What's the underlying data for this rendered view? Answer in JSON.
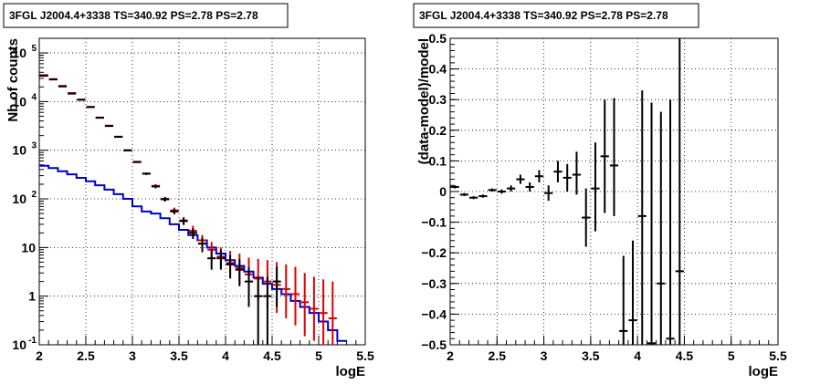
{
  "chart_data": [
    {
      "type": "line",
      "title": "3FGL J2004.4+3338 TS=340.92 PS=2.78 PS=2.78",
      "xlabel": "logE",
      "ylabel": "Nb of counts",
      "xlim": [
        2,
        5.5
      ],
      "ylim": [
        0.1,
        200000
      ],
      "yscale": "log",
      "grid": true,
      "x_ticks": [
        "2",
        "2.5",
        "3",
        "3.5",
        "4",
        "4.5",
        "5",
        "5.5"
      ],
      "y_ticks": [
        {
          "base": "10",
          "exp": "-1",
          "value": 0.1
        },
        {
          "base": "1",
          "exp": "",
          "value": 1
        },
        {
          "base": "10",
          "exp": "",
          "value": 10
        },
        {
          "base": "10",
          "exp": "2",
          "value": 100
        },
        {
          "base": "10",
          "exp": "3",
          "value": 1000
        },
        {
          "base": "10",
          "exp": "4",
          "value": 10000
        },
        {
          "base": "10",
          "exp": "5",
          "value": 100000
        }
      ],
      "series": [
        {
          "kind": "step",
          "color": "#0000cc",
          "edges": [
            2,
            2.1,
            2.2,
            2.3,
            2.4,
            2.5,
            2.6,
            2.7,
            2.8,
            2.9,
            3.0,
            3.1,
            3.2,
            3.3,
            3.4,
            3.5,
            3.6,
            3.7,
            3.8,
            3.9,
            4.0,
            4.1,
            4.2,
            4.3,
            4.4,
            4.5,
            4.6,
            4.7,
            4.8,
            4.9,
            5.0,
            5.1,
            5.2,
            5.3
          ],
          "values": [
            480,
            430,
            370,
            320,
            270,
            230,
            190,
            155,
            125,
            100,
            70,
            55,
            50,
            40,
            30,
            23,
            18,
            14,
            10,
            7.5,
            5.5,
            4.2,
            3.2,
            2.4,
            1.8,
            1.4,
            1.1,
            0.8,
            0.6,
            0.45,
            0.3,
            0.2,
            0.12
          ]
        },
        {
          "kind": "points",
          "color": "#dd0000",
          "x": [
            2.05,
            2.15,
            2.25,
            2.35,
            2.45,
            2.55,
            2.65,
            2.75,
            2.85,
            2.95,
            3.05,
            3.15,
            3.25,
            3.35,
            3.45,
            3.55,
            3.65,
            3.75,
            3.85,
            3.95,
            4.05,
            4.15,
            4.25,
            4.35,
            4.45,
            4.55,
            4.65,
            4.75,
            4.85,
            4.95,
            5.05,
            5.15
          ],
          "y": [
            35000,
            29000,
            21000,
            15000,
            11000,
            7800,
            4700,
            3200,
            1900,
            1000,
            580,
            330,
            185,
            100,
            58,
            36,
            22,
            14,
            9,
            6.5,
            4.8,
            3.8,
            2.8,
            2.3,
            2.0,
            1.7,
            1.4,
            1.1,
            0.75,
            0.55,
            0.45,
            0.35
          ],
          "ylow": [
            35000,
            29000,
            21000,
            15000,
            11000,
            7800,
            4700,
            3200,
            1900,
            1000,
            560,
            310,
            170,
            90,
            50,
            30,
            17,
            10,
            6,
            3.8,
            2.6,
            1.8,
            1.1,
            0.8,
            0.6,
            0.45,
            0.35,
            0.25,
            0.15,
            0.12,
            0.1,
            0.1
          ],
          "yhigh": [
            35000,
            29000,
            21000,
            15000,
            11000,
            7800,
            4700,
            3200,
            1900,
            1000,
            600,
            350,
            200,
            110,
            66,
            42,
            28,
            18,
            13,
            10,
            8.5,
            7.5,
            6.2,
            5.8,
            5.5,
            5.0,
            4.5,
            4.0,
            3.0,
            2.5,
            2.2,
            2.0
          ]
        },
        {
          "kind": "points",
          "color": "#000000",
          "x": [
            2.05,
            2.15,
            2.25,
            2.35,
            2.45,
            2.55,
            2.65,
            2.75,
            2.85,
            2.95,
            3.05,
            3.15,
            3.25,
            3.35,
            3.45,
            3.55,
            3.65,
            3.75,
            3.85,
            3.95,
            4.05,
            4.15,
            4.25,
            4.35,
            4.45,
            4.55
          ],
          "y": [
            34000,
            28500,
            20500,
            14600,
            10900,
            7700,
            4650,
            3150,
            1880,
            990,
            570,
            330,
            180,
            98,
            55,
            35,
            20,
            12,
            6,
            6,
            4.5,
            3.5,
            2,
            1,
            1,
            2
          ],
          "ylow": [
            34000,
            28500,
            20500,
            14600,
            10900,
            7700,
            4650,
            3150,
            1880,
            990,
            550,
            310,
            165,
            88,
            48,
            29,
            15,
            8,
            3.5,
            3.5,
            2.3,
            1.6,
            0.6,
            0.1,
            0.1,
            0.6
          ],
          "yhigh": [
            34000,
            28500,
            20500,
            14600,
            10900,
            7700,
            4650,
            3150,
            1880,
            990,
            590,
            350,
            195,
            108,
            62,
            41,
            25,
            16,
            9,
            9,
            7,
            5.8,
            4,
            2.5,
            2.5,
            4
          ]
        }
      ]
    },
    {
      "type": "scatter",
      "title": "3FGL J2004.4+3338 TS=340.92 PS=2.78 PS=2.78",
      "xlabel": "logE",
      "ylabel": "(data-model)/model",
      "xlim": [
        2,
        5.5
      ],
      "ylim": [
        -0.5,
        0.5
      ],
      "grid": true,
      "x_ticks": [
        "2",
        "2.5",
        "3",
        "3.5",
        "4",
        "4.5",
        "5",
        "5.5"
      ],
      "y_ticks": [
        "−0.5",
        "−0.4",
        "−0.3",
        "−0.2",
        "−0.1",
        "0",
        "0.1",
        "0.2",
        "0.3",
        "0.4",
        "0.5"
      ],
      "y_tick_values": [
        -0.5,
        -0.4,
        -0.3,
        -0.2,
        -0.1,
        0,
        0.1,
        0.2,
        0.3,
        0.4,
        0.5
      ],
      "series": [
        {
          "color": "#000000",
          "x": [
            2.05,
            2.15,
            2.25,
            2.35,
            2.45,
            2.55,
            2.65,
            2.75,
            2.85,
            2.95,
            3.05,
            3.15,
            3.25,
            3.35,
            3.45,
            3.55,
            3.65,
            3.75,
            3.85,
            3.95,
            4.05,
            4.15,
            4.25,
            4.35,
            4.45
          ],
          "y": [
            0.015,
            -0.01,
            -0.02,
            -0.015,
            0.005,
            0.0,
            0.01,
            0.04,
            0.015,
            0.05,
            -0.005,
            0.065,
            0.045,
            0.055,
            -0.085,
            0.01,
            0.115,
            0.085,
            -0.455,
            -0.42,
            -0.08,
            -0.495,
            -0.3,
            -0.48,
            -0.26
          ],
          "ylow": [
            0.01,
            -0.015,
            -0.025,
            -0.02,
            0.0,
            -0.007,
            0.0,
            0.025,
            0.0,
            0.03,
            -0.03,
            0.03,
            0.0,
            -0.01,
            -0.18,
            -0.13,
            -0.07,
            -0.08,
            -0.5,
            -0.5,
            -0.5,
            -0.5,
            -0.5,
            -0.5,
            -0.5
          ],
          "yhigh": [
            0.02,
            -0.005,
            -0.015,
            -0.01,
            0.01,
            0.007,
            0.02,
            0.055,
            0.03,
            0.07,
            0.02,
            0.1,
            0.09,
            0.13,
            0.01,
            0.16,
            0.3,
            0.305,
            -0.21,
            -0.16,
            0.33,
            0.29,
            0.26,
            0.3,
            0.5
          ]
        }
      ]
    }
  ]
}
